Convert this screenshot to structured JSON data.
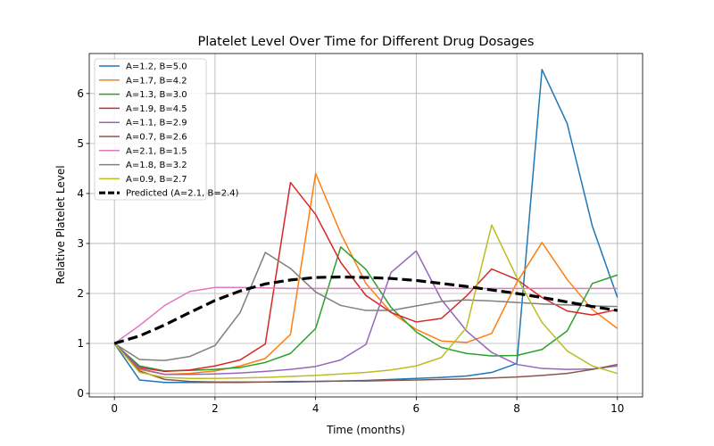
{
  "chart_data": {
    "type": "line",
    "title": "Platelet Level Over Time for Different Drug Dosages",
    "xlabel": "Time (months)",
    "ylabel": "Relative Platelet Level",
    "xlim": [
      -0.5,
      10.5
    ],
    "ylim": [
      -0.07,
      6.8
    ],
    "xticks": [
      0,
      2,
      4,
      6,
      8,
      10
    ],
    "yticks": [
      0,
      1,
      2,
      3,
      4,
      5,
      6
    ],
    "grid": true,
    "legend_position": "top-left",
    "x": [
      0,
      0.5,
      1,
      1.5,
      2,
      2.5,
      3,
      3.5,
      4,
      4.5,
      5,
      5.5,
      6,
      6.5,
      7,
      7.5,
      8,
      8.5,
      9,
      9.5,
      10
    ],
    "series": [
      {
        "name": "A=1.2, B=5.0",
        "color": "#1f77b4",
        "dashed": false,
        "values": [
          1.0,
          0.27,
          0.22,
          0.22,
          0.22,
          0.22,
          0.23,
          0.23,
          0.24,
          0.25,
          0.26,
          0.28,
          0.3,
          0.32,
          0.35,
          0.42,
          0.6,
          6.48,
          5.4,
          3.35,
          1.92
        ]
      },
      {
        "name": "A=1.7, B=4.2",
        "color": "#ff7f0e",
        "dashed": false,
        "values": [
          1.0,
          0.48,
          0.38,
          0.4,
          0.45,
          0.55,
          0.7,
          1.18,
          4.4,
          3.2,
          2.2,
          1.62,
          1.28,
          1.05,
          1.02,
          1.2,
          2.22,
          3.02,
          2.28,
          1.68,
          1.3
        ]
      },
      {
        "name": "A=1.3, B=3.0",
        "color": "#2ca02c",
        "dashed": false,
        "values": [
          1.0,
          0.55,
          0.45,
          0.46,
          0.48,
          0.52,
          0.62,
          0.8,
          1.3,
          2.93,
          2.48,
          1.72,
          1.23,
          0.92,
          0.8,
          0.75,
          0.76,
          0.88,
          1.25,
          2.2,
          2.37
        ]
      },
      {
        "name": "A=1.9, B=4.5",
        "color": "#d62728",
        "dashed": false,
        "values": [
          1.0,
          0.52,
          0.44,
          0.47,
          0.55,
          0.67,
          0.99,
          4.22,
          3.58,
          2.62,
          1.96,
          1.62,
          1.43,
          1.5,
          1.95,
          2.49,
          2.28,
          1.92,
          1.65,
          1.57,
          1.68
        ]
      },
      {
        "name": "A=1.1, B=2.9",
        "color": "#9467bd",
        "dashed": false,
        "values": [
          1.0,
          0.5,
          0.38,
          0.38,
          0.39,
          0.41,
          0.44,
          0.48,
          0.54,
          0.67,
          0.98,
          2.42,
          2.85,
          1.88,
          1.25,
          0.82,
          0.58,
          0.5,
          0.48,
          0.49,
          0.55
        ]
      },
      {
        "name": "A=0.7, B=2.6",
        "color": "#8c564b",
        "dashed": false,
        "values": [
          1.0,
          0.45,
          0.28,
          0.24,
          0.23,
          0.23,
          0.23,
          0.24,
          0.24,
          0.25,
          0.25,
          0.26,
          0.27,
          0.28,
          0.29,
          0.31,
          0.33,
          0.36,
          0.4,
          0.48,
          0.58
        ]
      },
      {
        "name": "A=2.1, B=1.5",
        "color": "#e377c2",
        "dashed": false,
        "values": [
          1.0,
          1.36,
          1.76,
          2.04,
          2.12,
          2.12,
          2.11,
          2.1,
          2.1,
          2.1,
          2.1,
          2.1,
          2.1,
          2.1,
          2.1,
          2.1,
          2.1,
          2.1,
          2.1,
          2.1,
          2.1
        ]
      },
      {
        "name": "A=1.8, B=3.2",
        "color": "#7f7f7f",
        "dashed": false,
        "values": [
          1.0,
          0.68,
          0.66,
          0.74,
          0.96,
          1.62,
          2.82,
          2.5,
          2.03,
          1.76,
          1.66,
          1.66,
          1.75,
          1.84,
          1.87,
          1.85,
          1.82,
          1.79,
          1.77,
          1.75,
          1.74
        ]
      },
      {
        "name": "A=0.9, B=2.7",
        "color": "#bcbd22",
        "dashed": false,
        "values": [
          1.0,
          0.42,
          0.32,
          0.3,
          0.3,
          0.31,
          0.32,
          0.34,
          0.36,
          0.39,
          0.42,
          0.47,
          0.55,
          0.72,
          1.32,
          3.37,
          2.32,
          1.42,
          0.85,
          0.55,
          0.4
        ]
      },
      {
        "name": "Predicted (A=2.1, B=2.4)",
        "color": "#000000",
        "dashed": true,
        "values": [
          1.0,
          1.15,
          1.37,
          1.62,
          1.86,
          2.05,
          2.19,
          2.27,
          2.32,
          2.33,
          2.32,
          2.3,
          2.26,
          2.2,
          2.14,
          2.07,
          2.0,
          1.92,
          1.83,
          1.74,
          1.66
        ]
      }
    ]
  }
}
